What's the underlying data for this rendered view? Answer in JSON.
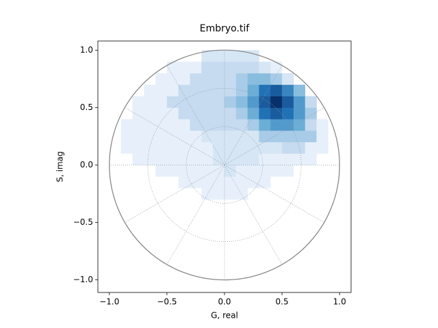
{
  "chart_data": {
    "type": "hist2d",
    "title": "Embryo.tif",
    "x_label": "G, real",
    "y_label": "S, imag",
    "xlim": [
      -1.1,
      1.1
    ],
    "ylim": [
      -1.11,
      1.08
    ],
    "xticks": [
      {
        "value": -1.0,
        "label": "−1.0"
      },
      {
        "value": -0.5,
        "label": "−0.5"
      },
      {
        "value": 0,
        "label": "0.0"
      },
      {
        "value": 0.5,
        "label": "0.5"
      },
      {
        "value": 1.0,
        "label": "1.0"
      }
    ],
    "yticks": [
      {
        "value": -1.0,
        "label": "−1.0"
      },
      {
        "value": -0.5,
        "label": "−0.5"
      },
      {
        "value": 0,
        "label": "0.0"
      },
      {
        "value": 0.5,
        "label": "0.5"
      },
      {
        "value": 1.0,
        "label": "1.0"
      }
    ],
    "colormap": [
      "#f7fbff",
      "#c6dbef",
      "#6baed6",
      "#2171b5",
      "#08306b"
    ],
    "unit_circle_color": "#808080",
    "polar_grid": {
      "radii": [
        0.333,
        0.667
      ],
      "angle_step": 30,
      "color": "#8a97a8"
    },
    "xbins": [
      -1.0,
      -0.9,
      -0.8,
      -0.7,
      -0.6,
      -0.5,
      -0.4,
      -0.3,
      -0.2,
      -0.1,
      0,
      0.1,
      0.2,
      0.3,
      0.4,
      0.5,
      0.6,
      0.7,
      0.8,
      0.9,
      1.0
    ],
    "ybins": [
      -1.0,
      -0.9,
      -0.8,
      -0.7,
      -0.6,
      -0.5,
      -0.4,
      -0.3,
      -0.2,
      -0.1,
      0,
      0.1,
      0.2,
      0.3,
      0.4,
      0.5,
      0.6,
      0.7,
      0.8,
      0.9,
      1.0
    ],
    "counts": [
      [
        0,
        0,
        0,
        0,
        0,
        0,
        0,
        0,
        0,
        0,
        0,
        0,
        0,
        0,
        0,
        0,
        0,
        0,
        0,
        0
      ],
      [
        0,
        0,
        0,
        0,
        0,
        0,
        0,
        0,
        0,
        0,
        0,
        0,
        0,
        0,
        0,
        0,
        0,
        0,
        0,
        0
      ],
      [
        0,
        0,
        0,
        0,
        0,
        0,
        0,
        0,
        0,
        0,
        0,
        0,
        0,
        0,
        0,
        0,
        0,
        0,
        0,
        0
      ],
      [
        0,
        0,
        0,
        0,
        0,
        0,
        0,
        0,
        0,
        0,
        0,
        0,
        0,
        0,
        0,
        0,
        0,
        0,
        0,
        0
      ],
      [
        0,
        0,
        0,
        0,
        0,
        0,
        0,
        0,
        0,
        0,
        0,
        0,
        0,
        0,
        0,
        0,
        0,
        0,
        0,
        0
      ],
      [
        0,
        0,
        0,
        0,
        0,
        0,
        0,
        0,
        0,
        0,
        0,
        0,
        0,
        0,
        0,
        0,
        0,
        0,
        0,
        0
      ],
      [
        0,
        0,
        0,
        0,
        0,
        0,
        0,
        0,
        0,
        0,
        0,
        0,
        0,
        0,
        0,
        0,
        0,
        0,
        0,
        0
      ],
      [
        0,
        0,
        0,
        0,
        0,
        0,
        0,
        0,
        1,
        1,
        1,
        1,
        0,
        0,
        0,
        0,
        0,
        0,
        0,
        0
      ],
      [
        0,
        0,
        0,
        0,
        0,
        0,
        1,
        1,
        1,
        1,
        1,
        1,
        1,
        1,
        0,
        0,
        0,
        0,
        0,
        0
      ],
      [
        0,
        0,
        0,
        0,
        1,
        1,
        1,
        1,
        1,
        1,
        2,
        1,
        1,
        1,
        1,
        1,
        0,
        0,
        0,
        0
      ],
      [
        0,
        0,
        1,
        1,
        1,
        1,
        1,
        1,
        1,
        2,
        2,
        2,
        2,
        1,
        1,
        1,
        1,
        1,
        0,
        0
      ],
      [
        0,
        1,
        1,
        1,
        1,
        1,
        1,
        1,
        1,
        2,
        2,
        2,
        2,
        2,
        2,
        3,
        3,
        1,
        1,
        0
      ],
      [
        0,
        1,
        1,
        1,
        1,
        1,
        1,
        1,
        2,
        2,
        2,
        2,
        2,
        4,
        4,
        4,
        4,
        4,
        1,
        0
      ],
      [
        0,
        1,
        1,
        1,
        1,
        1,
        1,
        3,
        3,
        3,
        3,
        3,
        4,
        6,
        7,
        7,
        6,
        3,
        1,
        0
      ],
      [
        0,
        0,
        1,
        1,
        1,
        1,
        3,
        3,
        3,
        3,
        3,
        4,
        6,
        9,
        10,
        9,
        7,
        4,
        0,
        0
      ],
      [
        0,
        0,
        1,
        1,
        1,
        3,
        3,
        3,
        3,
        3,
        4,
        5,
        7,
        10,
        12,
        10,
        7,
        3,
        0,
        0
      ],
      [
        0,
        0,
        0,
        1,
        1,
        1,
        3,
        3,
        3,
        3,
        3,
        4,
        6,
        9,
        10,
        8,
        5,
        0,
        0,
        0
      ],
      [
        0,
        0,
        0,
        0,
        1,
        1,
        1,
        3,
        3,
        3,
        3,
        4,
        5,
        5,
        4,
        2,
        0,
        0,
        0,
        0
      ],
      [
        0,
        0,
        0,
        0,
        0,
        1,
        1,
        1,
        3,
        3,
        3,
        3,
        3,
        2,
        1,
        0,
        0,
        0,
        0,
        0
      ],
      [
        0,
        0,
        0,
        0,
        0,
        0,
        0,
        0,
        2,
        2,
        2,
        2,
        2,
        0,
        0,
        0,
        0,
        0,
        0,
        0
      ]
    ]
  }
}
